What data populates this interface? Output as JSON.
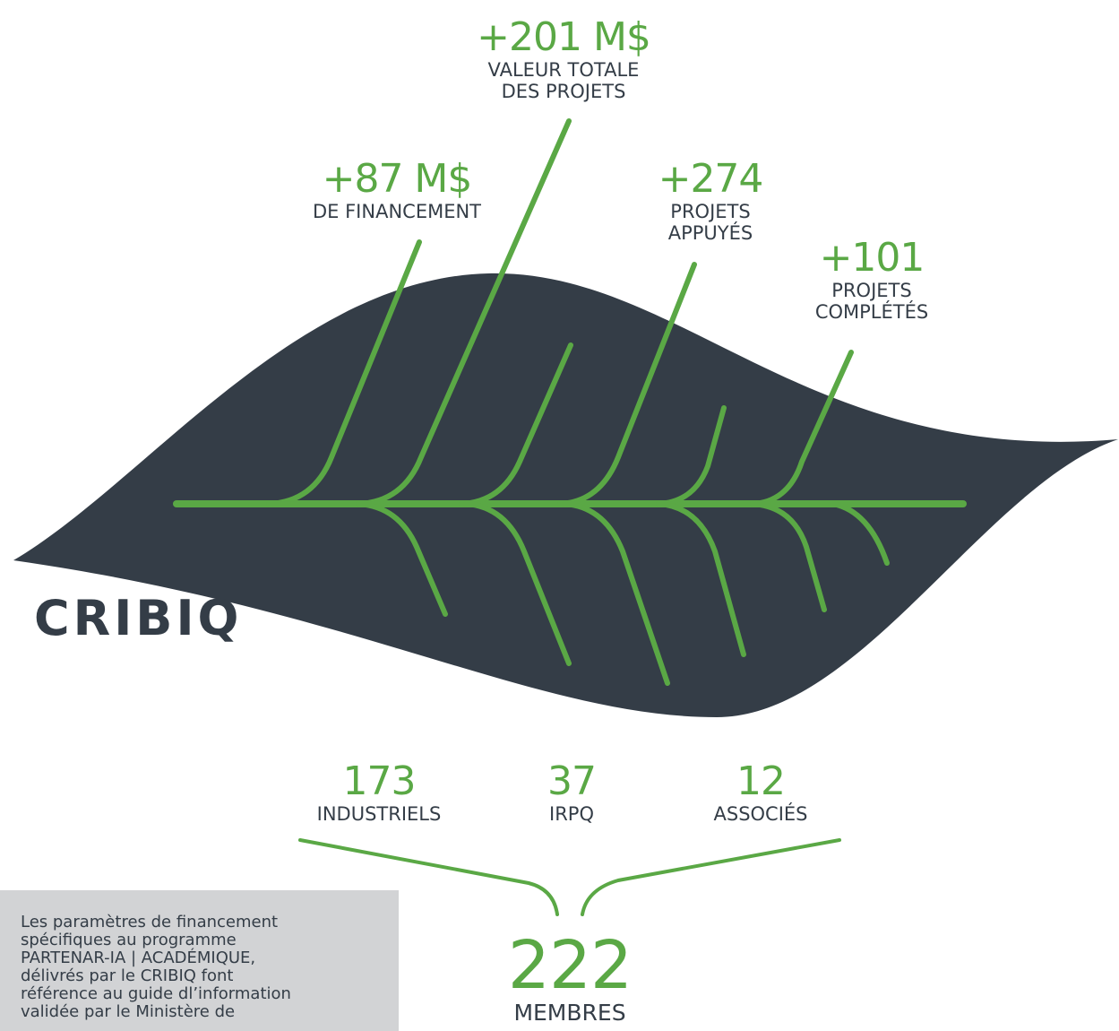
{
  "logo": "CRIBIQ",
  "stats": [
    {
      "value": "+87 M$",
      "label": [
        "DE FINANCEMENT"
      ]
    },
    {
      "value": "+201 M$",
      "label": [
        "VALEUR TOTALE",
        "DES PROJETS"
      ]
    },
    {
      "value": "+274",
      "label": [
        "PROJETS",
        "APPUYÉS"
      ]
    },
    {
      "value": "+101",
      "label": [
        "PROJETS",
        "COMPLÉTÉS"
      ]
    }
  ],
  "members": [
    {
      "value": "173",
      "label": "INDUSTRIELS"
    },
    {
      "value": "37",
      "label": "IRPQ"
    },
    {
      "value": "12",
      "label": "ASSOCIÉS"
    }
  ],
  "total": {
    "value": "222",
    "label": "MEMBRES"
  },
  "note": [
    "Les paramètres de financement",
    "spécifiques au programme",
    "PARTENAR-IA | ACADÉMIQUE,",
    "délivrés par le CRIBIQ font",
    "référence au guide dl’information",
    "validée par le Ministère de"
  ]
}
